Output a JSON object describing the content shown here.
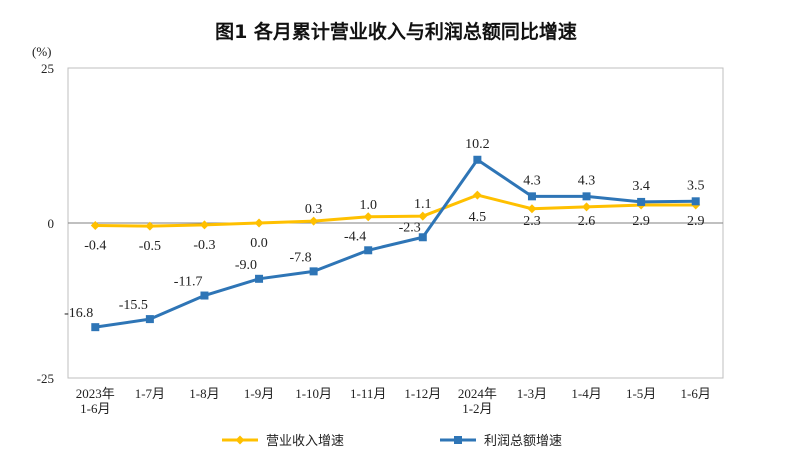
{
  "chart_data": {
    "type": "line",
    "title": "图1  各月累计营业收入与利润总额同比增速",
    "ylabel": "(%)",
    "ylim": [
      -25,
      25
    ],
    "yticks": [
      "25",
      "0",
      "-25"
    ],
    "categories": [
      "2023年\n1-6月",
      "1-7月",
      "1-8月",
      "1-9月",
      "1-10月",
      "1-11月",
      "1-12月",
      "2024年\n1-2月",
      "1-3月",
      "1-4月",
      "1-5月",
      "1-6月"
    ],
    "series": [
      {
        "name": "营业收入增速",
        "color": "#FFC000",
        "marker": "diamond",
        "values": [
          -0.4,
          -0.5,
          -0.3,
          0.0,
          0.3,
          1.0,
          1.1,
          4.5,
          2.3,
          2.6,
          2.9,
          2.9
        ],
        "labels": [
          "-0.4",
          "-0.5",
          "-0.3",
          "0.0",
          "0.3",
          "1.0",
          "1.1",
          "4.5",
          "2.3",
          "2.6",
          "2.9",
          "2.9"
        ]
      },
      {
        "name": "利润总额增速",
        "color": "#2E75B6",
        "marker": "square",
        "values": [
          -16.8,
          -15.5,
          -11.7,
          -9.0,
          -7.8,
          -4.4,
          -2.3,
          10.2,
          4.3,
          4.3,
          3.4,
          3.5
        ],
        "labels": [
          "-16.8",
          "-15.5",
          "-11.7",
          "-9.0",
          "-7.8",
          "-4.4",
          "-2.3",
          "10.2",
          "4.3",
          "4.3",
          "3.4",
          "3.5"
        ]
      }
    ],
    "legend_position": "bottom"
  }
}
